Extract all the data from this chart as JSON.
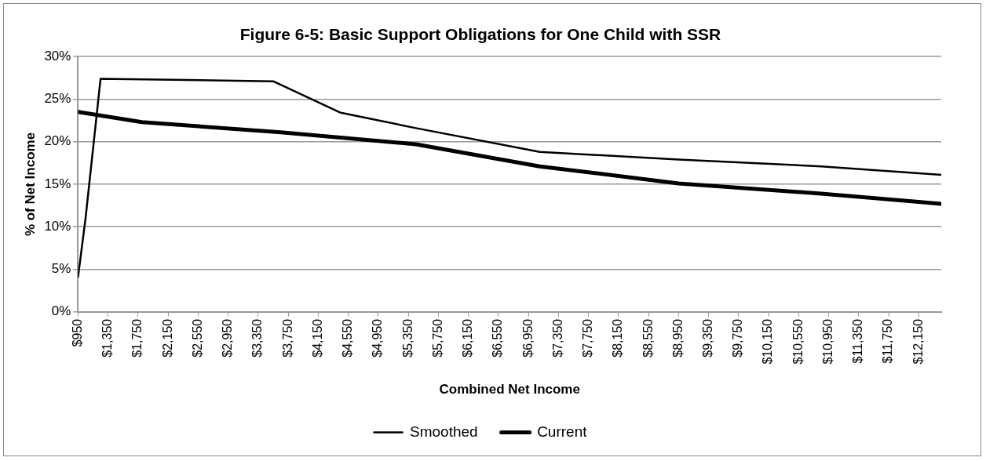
{
  "chart_data": {
    "type": "line",
    "title": "Figure 6-5: Basic Support Obligations for One Child with SSR",
    "xlabel": "Combined Net Income",
    "ylabel": "% of Net Income",
    "series": [
      {
        "name": "Smoothed",
        "color": "#000000",
        "x": [
          950,
          1050,
          1250,
          3550,
          4450,
          5450,
          7100,
          8950,
          10850,
          12450
        ],
        "values": [
          4.1,
          11,
          27.4,
          27.1,
          23.4,
          21.6,
          18.8,
          17.9,
          17.1,
          16.1
        ]
      },
      {
        "name": "Current",
        "color": "#000000",
        "x": [
          950,
          1800,
          3650,
          5450,
          7100,
          8950,
          10850,
          12450
        ],
        "values": [
          23.5,
          22.3,
          21.1,
          19.7,
          17.1,
          15.1,
          13.9,
          12.7
        ]
      }
    ],
    "xlim": [
      950,
      12450
    ],
    "xticks": [
      {
        "value": 950,
        "label": "$950"
      },
      {
        "value": 1350,
        "label": "$1,350"
      },
      {
        "value": 1750,
        "label": "$1,750"
      },
      {
        "value": 2150,
        "label": "$2,150"
      },
      {
        "value": 2550,
        "label": "$2,550"
      },
      {
        "value": 2950,
        "label": "$2,950"
      },
      {
        "value": 3350,
        "label": "$3,350"
      },
      {
        "value": 3750,
        "label": "$3,750"
      },
      {
        "value": 4150,
        "label": "$4,150"
      },
      {
        "value": 4550,
        "label": "$4,550"
      },
      {
        "value": 4950,
        "label": "$4,950"
      },
      {
        "value": 5350,
        "label": "$5,350"
      },
      {
        "value": 5750,
        "label": "$5,750"
      },
      {
        "value": 6150,
        "label": "$6,150"
      },
      {
        "value": 6550,
        "label": "$6,550"
      },
      {
        "value": 6950,
        "label": "$6,950"
      },
      {
        "value": 7350,
        "label": "$7,350"
      },
      {
        "value": 7750,
        "label": "$7,750"
      },
      {
        "value": 8150,
        "label": "$8,150"
      },
      {
        "value": 8550,
        "label": "$8,550"
      },
      {
        "value": 8950,
        "label": "$8,950"
      },
      {
        "value": 9350,
        "label": "$9,350"
      },
      {
        "value": 9750,
        "label": "$9,750"
      },
      {
        "value": 10150,
        "label": "$10,150"
      },
      {
        "value": 10550,
        "label": "$10,550"
      },
      {
        "value": 10950,
        "label": "$10,950"
      },
      {
        "value": 11350,
        "label": "$11,350"
      },
      {
        "value": 11750,
        "label": "$11,750"
      },
      {
        "value": 12150,
        "label": "$12,150"
      }
    ],
    "ylim": [
      0,
      30
    ],
    "yticks": [
      {
        "value": 0,
        "label": "0%"
      },
      {
        "value": 5,
        "label": "5%"
      },
      {
        "value": 10,
        "label": "10%"
      },
      {
        "value": 15,
        "label": "15%"
      },
      {
        "value": 20,
        "label": "20%"
      },
      {
        "value": 25,
        "label": "25%"
      },
      {
        "value": 30,
        "label": "30%"
      }
    ],
    "grid": "y",
    "legend": "bottom",
    "marker": "none",
    "line_style": "solid"
  }
}
